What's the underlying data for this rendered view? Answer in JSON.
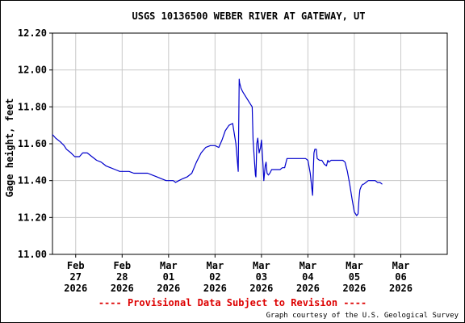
{
  "chart_data": {
    "type": "line",
    "title": "USGS 10136500 WEBER RIVER AT GATEWAY, UT",
    "ylabel": "Gage height, feet",
    "ylim": [
      11.0,
      12.2
    ],
    "yticks": [
      "11.00",
      "11.20",
      "11.40",
      "11.60",
      "11.80",
      "12.00",
      "12.20"
    ],
    "xlim": [
      -0.5,
      8.0
    ],
    "xticks": [
      {
        "x": 0,
        "l1": "Feb",
        "l2": "27",
        "l3": "2026"
      },
      {
        "x": 1,
        "l1": "Feb",
        "l2": "28",
        "l3": "2026"
      },
      {
        "x": 2,
        "l1": "Mar",
        "l2": "01",
        "l3": "2026"
      },
      {
        "x": 3,
        "l1": "Mar",
        "l2": "02",
        "l3": "2026"
      },
      {
        "x": 4,
        "l1": "Mar",
        "l2": "03",
        "l3": "2026"
      },
      {
        "x": 5,
        "l1": "Mar",
        "l2": "04",
        "l3": "2026"
      },
      {
        "x": 6,
        "l1": "Mar",
        "l2": "05",
        "l3": "2026"
      },
      {
        "x": 7,
        "l1": "Mar",
        "l2": "06",
        "l3": "2026"
      }
    ],
    "grid": true,
    "line_color": "#0000cc",
    "series": [
      {
        "x": [
          -0.5,
          -0.43,
          -0.33,
          -0.25,
          -0.2,
          -0.1,
          -0.02,
          0.08,
          0.15,
          0.25,
          0.35,
          0.45,
          0.55,
          0.65,
          0.75,
          0.85,
          0.95,
          1.05,
          1.15,
          1.25,
          1.35,
          1.45,
          1.55,
          1.65,
          1.75,
          1.85,
          1.95,
          2.05,
          2.1,
          2.15,
          2.22,
          2.3,
          2.4,
          2.5,
          2.6,
          2.7,
          2.8,
          2.9,
          3.0,
          3.08,
          3.15,
          3.22,
          3.3,
          3.38,
          3.45,
          3.5,
          3.52,
          3.53,
          3.56,
          3.6,
          3.65,
          3.7,
          3.75,
          3.8,
          3.82,
          3.85,
          3.87,
          3.88,
          3.9,
          3.92,
          3.95,
          3.98,
          4.0,
          4.03,
          4.05,
          4.08,
          4.1,
          4.12,
          4.15,
          4.18,
          4.2,
          4.22,
          4.25,
          4.3,
          4.35,
          4.4,
          4.45,
          4.5,
          4.55,
          4.6,
          4.65,
          4.7,
          4.72,
          4.75,
          4.8,
          4.85,
          4.9,
          4.95,
          5.0,
          5.05,
          5.1,
          5.12,
          5.13,
          5.15,
          5.18,
          5.2,
          5.25,
          5.3,
          5.35,
          5.4,
          5.43,
          5.45,
          5.5,
          5.55,
          5.6,
          5.65,
          5.7,
          5.75,
          5.8,
          5.85,
          5.9,
          5.95,
          6.0,
          6.05,
          6.08,
          6.1,
          6.12,
          6.15,
          6.18,
          6.2,
          6.25,
          6.3,
          6.35,
          6.4,
          6.45,
          6.5,
          6.55,
          6.6
        ],
        "y": [
          11.65,
          11.63,
          11.61,
          11.59,
          11.57,
          11.55,
          11.53,
          11.53,
          11.55,
          11.55,
          11.53,
          11.51,
          11.5,
          11.48,
          11.47,
          11.46,
          11.45,
          11.45,
          11.45,
          11.44,
          11.44,
          11.44,
          11.44,
          11.43,
          11.42,
          11.41,
          11.4,
          11.4,
          11.4,
          11.39,
          11.4,
          11.41,
          11.42,
          11.44,
          11.5,
          11.55,
          11.58,
          11.59,
          11.59,
          11.58,
          11.62,
          11.67,
          11.7,
          11.71,
          11.6,
          11.45,
          11.95,
          11.93,
          11.9,
          11.88,
          11.86,
          11.84,
          11.82,
          11.8,
          11.62,
          11.5,
          11.43,
          11.42,
          11.6,
          11.63,
          11.55,
          11.58,
          11.62,
          11.5,
          11.4,
          11.48,
          11.5,
          11.44,
          11.43,
          11.44,
          11.45,
          11.46,
          11.46,
          11.46,
          11.46,
          11.46,
          11.47,
          11.47,
          11.52,
          11.52,
          11.52,
          11.52,
          11.52,
          11.52,
          11.52,
          11.52,
          11.52,
          11.52,
          11.51,
          11.44,
          11.32,
          11.48,
          11.55,
          11.57,
          11.57,
          11.52,
          11.51,
          11.51,
          11.49,
          11.48,
          11.51,
          11.5,
          11.51,
          11.51,
          11.51,
          11.51,
          11.51,
          11.51,
          11.5,
          11.45,
          11.38,
          11.3,
          11.23,
          11.21,
          11.22,
          11.3,
          11.35,
          11.37,
          11.38,
          11.38,
          11.39,
          11.4,
          11.4,
          11.4,
          11.4,
          11.39,
          11.39,
          11.38
        ]
      }
    ]
  },
  "notice": "---- Provisional Data Subject to Revision ----",
  "credit": "Graph courtesy of the U.S. Geological Survey"
}
